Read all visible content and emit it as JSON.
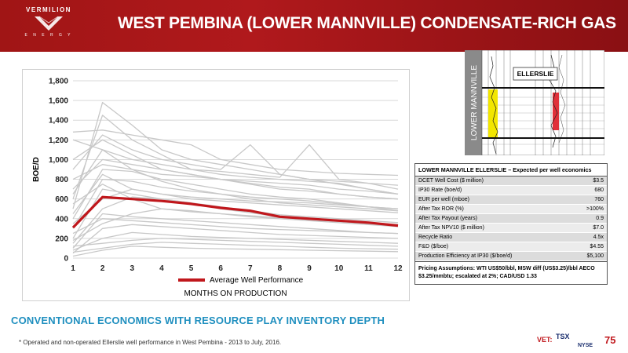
{
  "header": {
    "logo_name": "VERMILION",
    "logo_sub": "E N E R G Y",
    "title": "WEST PEMBINA (LOWER MANNVILLE) CONDENSATE-RICH GAS"
  },
  "chart_data": {
    "type": "line",
    "title": "",
    "xlabel": "MONTHS ON PRODUCTION",
    "ylabel": "BOE/D",
    "x": [
      1,
      2,
      3,
      4,
      5,
      6,
      7,
      8,
      9,
      10,
      11,
      12
    ],
    "xlim": [
      1,
      12
    ],
    "ylim": [
      0,
      1800
    ],
    "yticks": [
      "0",
      "200",
      "400",
      "600",
      "800",
      "1,000",
      "1,200",
      "1,400",
      "1,600",
      "1,800"
    ],
    "xticks": [
      "1",
      "2",
      "3",
      "4",
      "5",
      "6",
      "7",
      "8",
      "9",
      "10",
      "11",
      "12"
    ],
    "grid": true,
    "legend_position": "bottom",
    "series": [
      {
        "name": "Average Well Performance",
        "color": "#c0171c",
        "values": [
          310,
          620,
          600,
          580,
          550,
          510,
          480,
          420,
          400,
          380,
          360,
          330
        ]
      },
      {
        "color": "#c8c8c8",
        "values": [
          500,
          1580,
          1350,
          1100,
          1000,
          950,
          900,
          850,
          800,
          780,
          760,
          740
        ]
      },
      {
        "color": "#c8c8c8",
        "values": [
          600,
          1450,
          1200,
          1050,
          900,
          850,
          820,
          800,
          780,
          760,
          700,
          650
        ]
      },
      {
        "color": "#c8c8c8",
        "values": [
          1280,
          1300,
          1250,
          1200,
          1150,
          1000,
          950,
          900,
          880,
          860,
          850,
          840
        ]
      },
      {
        "color": "#c8c8c8",
        "values": [
          900,
          1250,
          1100,
          1000,
          950,
          900,
          1150,
          850,
          800,
          750,
          700,
          650
        ]
      },
      {
        "color": "#c8c8c8",
        "values": [
          1200,
          1100,
          1000,
          950,
          900,
          880,
          850,
          820,
          1150,
          800,
          760,
          700
        ]
      },
      {
        "color": "#c8c8c8",
        "values": [
          700,
          1000,
          950,
          900,
          850,
          800,
          760,
          720,
          700,
          650,
          620,
          600
        ]
      },
      {
        "color": "#c8c8c8",
        "values": [
          800,
          950,
          900,
          850,
          830,
          800,
          780,
          760,
          740,
          700,
          680,
          650
        ]
      },
      {
        "color": "#c8c8c8",
        "values": [
          400,
          900,
          880,
          800,
          750,
          700,
          650,
          620,
          600,
          560,
          520,
          500
        ]
      },
      {
        "color": "#c8c8c8",
        "values": [
          300,
          800,
          780,
          720,
          680,
          650,
          620,
          600,
          580,
          550,
          520,
          480
        ]
      },
      {
        "color": "#c8c8c8",
        "values": [
          200,
          700,
          650,
          600,
          560,
          520,
          480,
          440,
          420,
          400,
          380,
          360
        ]
      },
      {
        "color": "#c8c8c8",
        "values": [
          150,
          500,
          620,
          600,
          560,
          500,
          460,
          420,
          400,
          380,
          360,
          340
        ]
      },
      {
        "color": "#c8c8c8",
        "values": [
          100,
          450,
          420,
          400,
          380,
          360,
          340,
          320,
          300,
          280,
          260,
          250
        ]
      },
      {
        "color": "#c8c8c8",
        "values": [
          250,
          400,
          380,
          360,
          340,
          320,
          300,
          290,
          280,
          270,
          260,
          250
        ]
      },
      {
        "color": "#c8c8c8",
        "values": [
          50,
          300,
          340,
          320,
          300,
          280,
          260,
          240,
          230,
          220,
          210,
          200
        ]
      },
      {
        "color": "#c8c8c8",
        "values": [
          80,
          200,
          260,
          240,
          220,
          210,
          200,
          190,
          180,
          170,
          160,
          150
        ]
      },
      {
        "color": "#c8c8c8",
        "values": [
          120,
          150,
          180,
          200,
          190,
          180,
          170,
          160,
          150,
          140,
          130,
          120
        ]
      },
      {
        "color": "#c8c8c8",
        "values": [
          60,
          100,
          140,
          160,
          150,
          140,
          130,
          120,
          110,
          100,
          95,
          90
        ]
      },
      {
        "color": "#c8c8c8",
        "values": [
          350,
          600,
          700,
          650,
          600,
          580,
          560,
          540,
          520,
          500,
          480,
          460
        ]
      },
      {
        "color": "#c8c8c8",
        "values": [
          450,
          850,
          700,
          650,
          620,
          600,
          580,
          570,
          560,
          540,
          520,
          500
        ]
      },
      {
        "color": "#c8c8c8",
        "values": [
          1000,
          1200,
          1050,
          900,
          850,
          800,
          750,
          700,
          680,
          650,
          620,
          600
        ]
      },
      {
        "color": "#c8c8c8",
        "values": [
          650,
          1100,
          900,
          780,
          700,
          650,
          600,
          560,
          540,
          520,
          500,
          480
        ]
      },
      {
        "color": "#c8c8c8",
        "values": [
          550,
          750,
          600,
          500,
          470,
          450,
          430,
          410,
          390,
          370,
          350,
          330
        ]
      },
      {
        "color": "#c8c8c8",
        "values": [
          180,
          350,
          450,
          500,
          480,
          450,
          420,
          400,
          380,
          360,
          340,
          320
        ]
      },
      {
        "color": "#c8c8c8",
        "values": [
          20,
          80,
          120,
          110,
          100,
          95,
          90,
          85,
          80,
          75,
          70,
          65
        ]
      }
    ]
  },
  "log_panel": {
    "vertical_label": "LOWER MANNVILLE",
    "zone_label": "ELLERSLIE"
  },
  "economics": {
    "header": "LOWER MANNVILLE ELLERSLIE – Expected per well economics",
    "rows": [
      {
        "label": "DCET Well Cost ($ million)",
        "value": "$3.5"
      },
      {
        "label": "IP30 Rate (boe/d)",
        "value": "680"
      },
      {
        "label": "EUR per well (mboe)",
        "value": "760"
      },
      {
        "label": "After Tax ROR (%)",
        "value": ">100%"
      },
      {
        "label": "After Tax Payout (years)",
        "value": "0.9"
      },
      {
        "label": "After Tax NPV10 ($ million)",
        "value": "$7.0"
      },
      {
        "label": "Recycle Ratio",
        "value": "4.5x"
      },
      {
        "label": "F&D ($/boe)",
        "value": "$4.55"
      },
      {
        "label": "Production Efficiency at IP30 ($/boe/d)",
        "value": "$5,100"
      }
    ],
    "footer": "Pricing Assumptions: WTI US$50/bbl, MSW diff (US$3.25)/bbl AECO $3.25/mmbtu; escalated at 2%; CAD/USD 1.33"
  },
  "subtitle": "CONVENTIONAL ECONOMICS WITH RESOURCE PLAY INVENTORY DEPTH",
  "footnote": "* Operated and non-operated Ellerslie well performance in West Pembina - 2013 to July, 2016.",
  "footer": {
    "vet": "VET:",
    "tsx": "TSX",
    "nyse": "NYSE",
    "page_number": "75"
  }
}
